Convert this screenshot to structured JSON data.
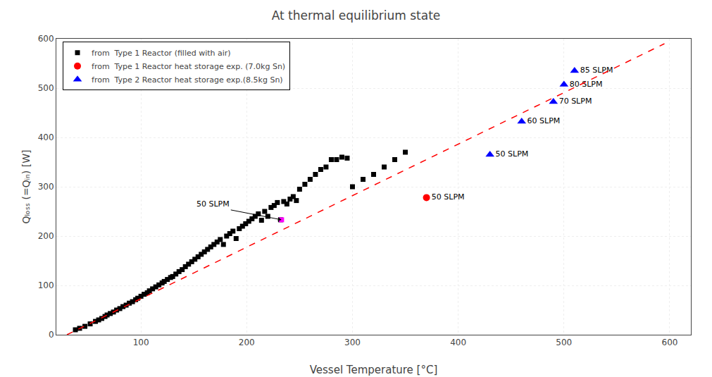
{
  "chart_data": {
    "type": "scatter",
    "title": "At thermal equilibrium state",
    "x_label": "Vessel Temperature [°C]",
    "y_label": "Qₗₒₛₛ (=Qᵢₙ) [W]",
    "xlim": [
      20,
      620
    ],
    "ylim": [
      0,
      600
    ],
    "xticks": [
      100,
      200,
      300,
      400,
      500,
      600
    ],
    "yticks": [
      0,
      100,
      200,
      300,
      400,
      500,
      600
    ],
    "grid": true,
    "legend": "upper left",
    "series": [
      {
        "name": "from  Type 1 Reactor (filled with air)",
        "type": "scatter",
        "color": "black",
        "marker": "square",
        "x": [
          38,
          42,
          47,
          52,
          57,
          60,
          63,
          66,
          68,
          71,
          74,
          77,
          80,
          83,
          86,
          89,
          92,
          95,
          97,
          100,
          103,
          106,
          108,
          111,
          114,
          117,
          120,
          122,
          125,
          128,
          130,
          133,
          136,
          139,
          142,
          145,
          148,
          151,
          154,
          157,
          160,
          163,
          166,
          169,
          172,
          175,
          178,
          181,
          184,
          187,
          190,
          193,
          196,
          199,
          202,
          205,
          208,
          211,
          214,
          217,
          220,
          223,
          226,
          229,
          232,
          235,
          238,
          241,
          244,
          247,
          250,
          255,
          260,
          265,
          270,
          275,
          280,
          285,
          290,
          295,
          300,
          310,
          320,
          330,
          340,
          350
        ],
        "y": [
          10,
          13,
          17,
          22,
          27,
          30,
          33,
          37,
          40,
          43,
          46,
          50,
          53,
          57,
          60,
          64,
          67,
          71,
          74,
          78,
          82,
          85,
          89,
          93,
          97,
          101,
          105,
          108,
          112,
          116,
          118,
          123,
          128,
          132,
          138,
          143,
          148,
          153,
          158,
          163,
          168,
          173,
          178,
          183,
          188,
          193,
          183,
          200,
          205,
          210,
          195,
          215,
          220,
          225,
          230,
          235,
          240,
          245,
          232,
          250,
          240,
          258,
          262,
          268,
          233,
          270,
          265,
          275,
          280,
          272,
          295,
          305,
          315,
          325,
          335,
          340,
          355,
          355,
          360,
          358,
          300,
          315,
          325,
          340,
          355,
          370
        ]
      },
      {
        "type": "scatter",
        "color": "magenta",
        "marker": "square",
        "x": [
          233
        ],
        "y": [
          233
        ]
      },
      {
        "name": "from  Type 1 Reactor heat storage exp. (7.0kg Sn)",
        "type": "scatter",
        "color": "red",
        "marker": "circle",
        "x": [
          370
        ],
        "y": [
          278
        ],
        "labels": [
          "50 SLPM"
        ]
      },
      {
        "name": "from  Type 2 Reactor heat storage exp.(8.5kg Sn)",
        "type": "scatter",
        "color": "blue",
        "marker": "triangle-up",
        "x": [
          430,
          460,
          490,
          500,
          510
        ],
        "y": [
          365,
          432,
          472,
          507,
          535
        ],
        "labels": [
          "50 SLPM",
          "60 SLPM",
          "70 SLPM",
          "80 SLPM",
          "85 SLPM"
        ]
      },
      {
        "type": "line",
        "color": "red",
        "line_style": "dashed",
        "x": [
          30,
          595
        ],
        "y": [
          0,
          590
        ]
      }
    ],
    "annotations": [
      {
        "text": "50 SLPM",
        "x": 233,
        "y": 233,
        "text_x": 185,
        "text_y": 253
      }
    ]
  }
}
